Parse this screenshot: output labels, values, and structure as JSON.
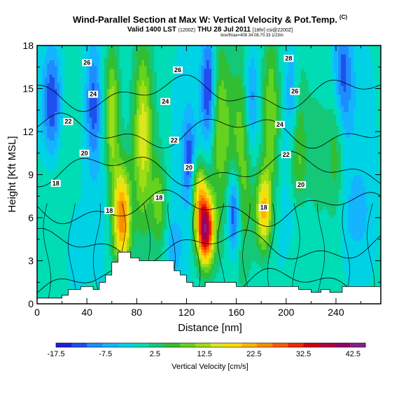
{
  "header": {
    "title": "Wind-Parallel Section at Max W: Vertical Velocity & Pot.Temp.",
    "corner_mark": "(C)",
    "valid_line": "Valid 1400 LST",
    "valid_small": "(1200Z)",
    "valid_line2": "THU 28 Jul 2011",
    "valid_small2": "[18hr] csi@2200Z]",
    "sub_line": "box/fmax=408 34.08,70.33 1/23m"
  },
  "chart_data": {
    "type": "heatmap",
    "xlabel": "Distance [nm]",
    "ylabel": "Height [Kft MSL]",
    "xlim": [
      0,
      276
    ],
    "ylim": [
      0,
      18
    ],
    "x_ticks": [
      0,
      40,
      80,
      120,
      160,
      200,
      240
    ],
    "y_ticks": [
      0,
      3,
      6,
      9,
      12,
      15,
      18
    ],
    "colorbar": {
      "label": "Vertical Velocity [cm/s]",
      "min": -17.5,
      "max": 45,
      "tick_values": [
        -17.5,
        -7.5,
        2.5,
        12.5,
        22.5,
        32.5,
        42.5
      ],
      "tick_labels": [
        "-17.5",
        "-7.5",
        "2.5",
        "12.5",
        "22.5",
        "32.5",
        "42.5"
      ],
      "colors": [
        "#1e1ee0",
        "#1e50f0",
        "#1e8cff",
        "#14b4ff",
        "#00d2e6",
        "#00dcb4",
        "#14c878",
        "#32be32",
        "#64d21e",
        "#a0dc14",
        "#dce61e",
        "#ffdc00",
        "#ffb400",
        "#ff8c00",
        "#ff5a00",
        "#f02800",
        "#d20014",
        "#b4003c",
        "#960064",
        "#8c1e8c"
      ]
    },
    "terrain": [
      [
        0,
        0.4
      ],
      [
        20,
        0.4
      ],
      [
        20,
        0.6
      ],
      [
        25,
        0.6
      ],
      [
        25,
        1.0
      ],
      [
        35,
        1.0
      ],
      [
        35,
        1.2
      ],
      [
        45,
        1.2
      ],
      [
        45,
        1.0
      ],
      [
        50,
        1.0
      ],
      [
        50,
        1.5
      ],
      [
        55,
        1.5
      ],
      [
        55,
        2.0
      ],
      [
        60,
        2.0
      ],
      [
        60,
        2.9
      ],
      [
        65,
        2.9
      ],
      [
        65,
        3.6
      ],
      [
        75,
        3.6
      ],
      [
        75,
        3.2
      ],
      [
        82,
        3.2
      ],
      [
        82,
        3.0
      ],
      [
        110,
        3.0
      ],
      [
        110,
        2.3
      ],
      [
        115,
        2.3
      ],
      [
        115,
        2.0
      ],
      [
        120,
        2.0
      ],
      [
        120,
        1.5
      ],
      [
        125,
        1.5
      ],
      [
        125,
        1.2
      ],
      [
        135,
        1.2
      ],
      [
        135,
        1.5
      ],
      [
        160,
        1.5
      ],
      [
        160,
        1.2
      ],
      [
        210,
        1.2
      ],
      [
        210,
        1.0
      ],
      [
        220,
        1.0
      ],
      [
        220,
        0.8
      ],
      [
        228,
        0.8
      ],
      [
        228,
        1.0
      ],
      [
        235,
        1.0
      ],
      [
        235,
        0.8
      ],
      [
        245,
        0.8
      ],
      [
        245,
        1.2
      ],
      [
        276,
        1.2
      ]
    ],
    "w_background": -1,
    "w_features": [
      {
        "x": 68,
        "z": 6,
        "sx": 7,
        "sz": 3.5,
        "amp": 27
      },
      {
        "x": 60,
        "z": 13,
        "sx": 6,
        "sz": 5,
        "amp": 16
      },
      {
        "x": 85,
        "z": 12,
        "sx": 7,
        "sz": 6,
        "amp": 14
      },
      {
        "x": 98,
        "z": 7,
        "sx": 6,
        "sz": 3,
        "amp": 9
      },
      {
        "x": 135,
        "z": 5.2,
        "sx": 7,
        "sz": 2.4,
        "amp": 42
      },
      {
        "x": 130,
        "z": 8,
        "sx": 6,
        "sz": 2.2,
        "amp": 16
      },
      {
        "x": 146,
        "z": 13,
        "sx": 8,
        "sz": 6,
        "amp": 10
      },
      {
        "x": 182,
        "z": 6.5,
        "sx": 6,
        "sz": 2.8,
        "amp": 22
      },
      {
        "x": 188,
        "z": 13,
        "sx": 7,
        "sz": 6,
        "amp": 14
      },
      {
        "x": 210,
        "z": 10,
        "sx": 6,
        "sz": 6,
        "amp": 8
      },
      {
        "x": 165,
        "z": 10,
        "sx": 10,
        "sz": 7,
        "amp": 9
      },
      {
        "x": 240,
        "z": 11,
        "sx": 6,
        "sz": 5,
        "amp": 7
      },
      {
        "x": 12,
        "z": 14,
        "sx": 8,
        "sz": 4,
        "amp": -15
      },
      {
        "x": 45,
        "z": 14,
        "sx": 6,
        "sz": 4,
        "amp": -10
      },
      {
        "x": 138,
        "z": 15,
        "sx": 6,
        "sz": 4,
        "amp": -16
      },
      {
        "x": 122,
        "z": 10,
        "sx": 5,
        "sz": 3,
        "amp": -10
      },
      {
        "x": 158,
        "z": 6.5,
        "sx": 5,
        "sz": 3,
        "amp": -18
      },
      {
        "x": 172,
        "z": 14,
        "sx": 5,
        "sz": 4,
        "amp": -11
      },
      {
        "x": 205,
        "z": 15,
        "sx": 5,
        "sz": 3,
        "amp": -8
      },
      {
        "x": 245,
        "z": 16,
        "sx": 8,
        "sz": 4,
        "amp": -12
      },
      {
        "x": 30,
        "z": 4,
        "sx": 8,
        "sz": 3,
        "amp": -4
      },
      {
        "x": 110,
        "z": 4,
        "sx": 6,
        "sz": 2,
        "amp": -6
      },
      {
        "x": 210,
        "z": 6,
        "sx": 8,
        "sz": 2,
        "amp": -5
      },
      {
        "x": 255,
        "z": 6,
        "sx": 15,
        "sz": 3,
        "amp": -3
      }
    ],
    "theta_base": 17,
    "theta_lapse": 0.75,
    "contour_levels": [
      18,
      20,
      22,
      24,
      26,
      28
    ],
    "contour_labels": [
      {
        "x": 15,
        "z": 8.4,
        "text": "18"
      },
      {
        "x": 58,
        "z": 6.5,
        "text": "18"
      },
      {
        "x": 98,
        "z": 7.4,
        "text": "18"
      },
      {
        "x": 182,
        "z": 6.7,
        "text": "18"
      },
      {
        "x": 38,
        "z": 10.5,
        "text": "20"
      },
      {
        "x": 122,
        "z": 9.5,
        "text": "20"
      },
      {
        "x": 212,
        "z": 8.3,
        "text": "20"
      },
      {
        "x": 25,
        "z": 12.7,
        "text": "22"
      },
      {
        "x": 110,
        "z": 11.4,
        "text": "22"
      },
      {
        "x": 200,
        "z": 10.4,
        "text": "22"
      },
      {
        "x": 45,
        "z": 14.6,
        "text": "24"
      },
      {
        "x": 103,
        "z": 14.1,
        "text": "24"
      },
      {
        "x": 195,
        "z": 12.5,
        "text": "24"
      },
      {
        "x": 40,
        "z": 16.8,
        "text": "26"
      },
      {
        "x": 113,
        "z": 16.3,
        "text": "26"
      },
      {
        "x": 207,
        "z": 14.8,
        "text": "26"
      },
      {
        "x": 202,
        "z": 17.1,
        "text": "28"
      }
    ]
  }
}
